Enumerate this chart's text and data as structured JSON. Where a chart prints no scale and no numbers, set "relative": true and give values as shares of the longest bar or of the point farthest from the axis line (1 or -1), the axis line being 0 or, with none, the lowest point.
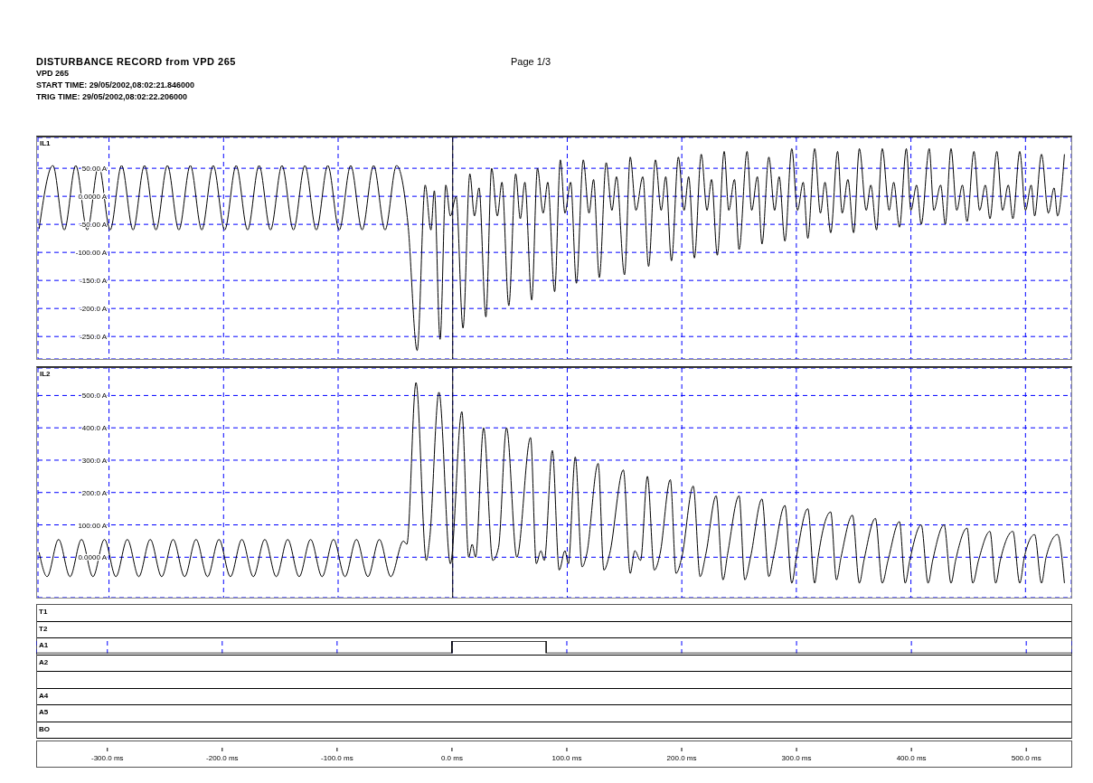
{
  "chart_data": [
    {
      "type": "line",
      "title": "DISTURBANCE RECORD from VPD 265",
      "subtitle": "VPD 265",
      "annotations": [
        "START TIME: 29/05/2002,08:02:21.846000",
        "TRIG TIME: 29/05/2002,08:02:22.206000",
        "Page 1/3"
      ],
      "ylabel": "IL1",
      "color": "#000000",
      "grid": true,
      "tick_labels": "y",
      "xlim": [
        -362,
        540
      ],
      "xticks": [
        -300,
        -200,
        -100,
        0,
        100,
        200,
        300,
        400,
        500
      ],
      "ylim": [
        -290,
        105
      ],
      "yticks": [
        {
          "value": 50,
          "label": "50.00 A"
        },
        {
          "value": 0,
          "label": "0.0000 A"
        },
        {
          "value": -50,
          "label": "-50.00 A"
        },
        {
          "value": -100,
          "label": "-100.00 A"
        },
        {
          "value": -150,
          "label": "-150.0 A"
        },
        {
          "value": -200,
          "label": "-200.0 A"
        },
        {
          "value": -250,
          "label": "-250.0 A"
        }
      ],
      "ref_lines": [
        {
          "axis": "x",
          "value": 0,
          "color": "#000000"
        }
      ],
      "x": [
        -361,
        -349,
        -339,
        -329,
        -319,
        -309,
        -299,
        -289,
        -279,
        -269,
        -259,
        -249,
        -239,
        -229,
        -219,
        -209,
        -199,
        -189,
        -179,
        -169,
        -159,
        -149,
        -139,
        -129,
        -119,
        -109,
        -99,
        -89,
        -79,
        -69,
        -59,
        -49,
        -39,
        -31,
        -24,
        -19,
        -16,
        -11,
        -6,
        -2,
        3,
        9,
        15,
        19,
        23,
        29,
        34,
        39,
        43,
        49,
        55,
        59,
        63,
        69,
        74,
        79,
        83,
        89,
        94,
        98,
        103,
        108,
        114,
        119,
        123,
        128,
        134,
        139,
        143,
        150,
        155,
        160,
        166,
        171,
        177,
        182,
        186,
        191,
        197,
        202,
        206,
        211,
        217,
        222,
        226,
        231,
        237,
        241,
        246,
        250,
        257,
        261,
        266,
        270,
        276,
        281,
        285,
        290,
        296,
        301,
        306,
        310,
        316,
        321,
        325,
        330,
        336,
        340,
        345,
        350,
        355,
        361,
        365,
        370,
        375,
        381,
        385,
        390,
        396,
        400,
        405,
        409,
        416,
        420,
        426,
        430,
        435,
        440,
        445,
        449,
        455,
        460,
        465,
        469,
        475,
        480,
        485,
        489,
        495,
        500,
        505,
        508,
        514,
        520,
        525,
        528,
        534
      ],
      "values": [
        -58,
        55,
        -60,
        55,
        -60,
        55,
        -60,
        55,
        -60,
        55,
        -60,
        55,
        -60,
        55,
        -60,
        55,
        -60,
        55,
        -60,
        55,
        -60,
        55,
        -60,
        55,
        -60,
        55,
        -60,
        55,
        -60,
        55,
        -60,
        55,
        -50,
        -275,
        20,
        -60,
        10,
        -255,
        20,
        -35,
        0,
        -235,
        40,
        -35,
        15,
        -215,
        50,
        -35,
        25,
        -195,
        40,
        -40,
        25,
        -185,
        50,
        -30,
        25,
        -170,
        65,
        -30,
        25,
        -155,
        65,
        -30,
        30,
        -145,
        60,
        -25,
        35,
        -140,
        70,
        -25,
        35,
        -125,
        65,
        -25,
        35,
        -115,
        70,
        -25,
        35,
        -110,
        75,
        -25,
        30,
        -105,
        80,
        -25,
        30,
        -95,
        80,
        -25,
        35,
        -85,
        70,
        -25,
        35,
        -80,
        85,
        -25,
        25,
        -75,
        85,
        -30,
        25,
        -65,
        80,
        -30,
        30,
        -65,
        85,
        -25,
        20,
        -60,
        85,
        -25,
        25,
        -55,
        85,
        -25,
        20,
        -50,
        85,
        -25,
        20,
        -50,
        85,
        -25,
        20,
        -45,
        80,
        -25,
        20,
        -40,
        80,
        -25,
        20,
        -40,
        80,
        -25,
        20,
        -35,
        75,
        -30,
        15,
        -35,
        75
      ]
    },
    {
      "type": "line",
      "ylabel": "IL2",
      "color": "#000000",
      "grid": true,
      "tick_labels": "y",
      "xlim": [
        -362,
        540
      ],
      "xticks": [
        -300,
        -200,
        -100,
        0,
        100,
        200,
        300,
        400,
        500
      ],
      "ylim": [
        -125,
        585
      ],
      "yticks": [
        {
          "value": 500,
          "label": "500.0 A"
        },
        {
          "value": 400,
          "label": "400.0 A"
        },
        {
          "value": 300,
          "label": "300.0 A"
        },
        {
          "value": 200,
          "label": "200.0 A"
        },
        {
          "value": 100,
          "label": "100.00 A"
        },
        {
          "value": 0,
          "label": "0.0000 A"
        }
      ],
      "ref_lines": [
        {
          "axis": "x",
          "value": 0,
          "color": "#000000"
        }
      ],
      "x": [
        -361,
        -354,
        -344,
        -334,
        -324,
        -314,
        -304,
        -294,
        -284,
        -274,
        -264,
        -254,
        -244,
        -234,
        -224,
        -214,
        -204,
        -194,
        -184,
        -174,
        -164,
        -154,
        -144,
        -134,
        -124,
        -114,
        -104,
        -94,
        -84,
        -74,
        -64,
        -54,
        -43,
        -40,
        -32,
        -23,
        -20,
        -12,
        -2,
        8,
        14,
        17,
        20,
        27,
        35,
        40,
        47,
        56,
        68,
        73,
        77,
        80,
        87,
        93,
        98,
        101,
        107,
        113,
        117,
        127,
        132,
        137,
        149,
        155,
        159,
        164,
        170,
        176,
        181,
        190,
        195,
        200,
        210,
        216,
        221,
        230,
        236,
        240,
        250,
        255,
        260,
        270,
        276,
        280,
        290,
        296,
        300,
        310,
        316,
        319,
        330,
        335,
        339,
        349,
        355,
        359,
        369,
        375,
        380,
        390,
        395,
        399,
        409,
        415,
        419,
        429,
        435,
        439,
        449,
        454,
        459,
        469,
        474,
        478,
        489,
        495,
        499,
        508,
        514,
        518,
        528,
        534
      ],
      "values": [
        15,
        -60,
        55,
        -60,
        55,
        -60,
        55,
        -60,
        55,
        -60,
        55,
        -60,
        55,
        -60,
        55,
        -60,
        55,
        -60,
        55,
        -60,
        55,
        -60,
        55,
        -60,
        55,
        -60,
        55,
        -60,
        55,
        -60,
        55,
        -60,
        50,
        40,
        540,
        -10,
        60,
        510,
        -20,
        450,
        0,
        40,
        0,
        400,
        -10,
        30,
        400,
        0,
        370,
        -20,
        20,
        -10,
        330,
        -40,
        20,
        -20,
        310,
        -30,
        10,
        290,
        -40,
        10,
        270,
        -50,
        20,
        -10,
        250,
        -40,
        10,
        240,
        -50,
        0,
        220,
        -60,
        10,
        190,
        -70,
        10,
        190,
        -70,
        0,
        180,
        -60,
        0,
        160,
        -80,
        0,
        150,
        -80,
        0,
        140,
        -70,
        0,
        130,
        -80,
        -10,
        120,
        -80,
        -10,
        110,
        -80,
        -10,
        100,
        -80,
        -10,
        100,
        -80,
        -10,
        90,
        -80,
        -10,
        80,
        -80,
        -10,
        80,
        -80,
        0,
        70,
        -80,
        0,
        70,
        -80
      ]
    },
    {
      "type": "step",
      "relative": true,
      "grid": "x",
      "tick_labels": "x",
      "annotations": [
        "T1",
        "T2",
        "A2",
        "A4",
        "A5",
        "BO"
      ],
      "xlim": [
        -362,
        540
      ],
      "xticks": [
        {
          "value": -300,
          "label": "-300.0 ms"
        },
        {
          "value": -200,
          "label": "-200.0 ms"
        },
        {
          "value": -100,
          "label": "-100.0 ms"
        },
        {
          "value": 0,
          "label": "0.0 ms"
        },
        {
          "value": 100,
          "label": "100.0 ms"
        },
        {
          "value": 200,
          "label": "200.0 ms"
        },
        {
          "value": 300,
          "label": "300.0 ms"
        },
        {
          "value": 400,
          "label": "400.0 ms"
        },
        {
          "value": 500,
          "label": "500.0 ms"
        }
      ],
      "ref_lines": [
        {
          "axis": "x",
          "value": 0,
          "color": "#000000"
        }
      ],
      "x": [
        -362,
        0,
        41,
        82,
        540
      ],
      "series": [
        {
          "name": "A1",
          "color": "#000000",
          "values": [
            0,
            1,
            1,
            0,
            0
          ]
        }
      ]
    }
  ]
}
